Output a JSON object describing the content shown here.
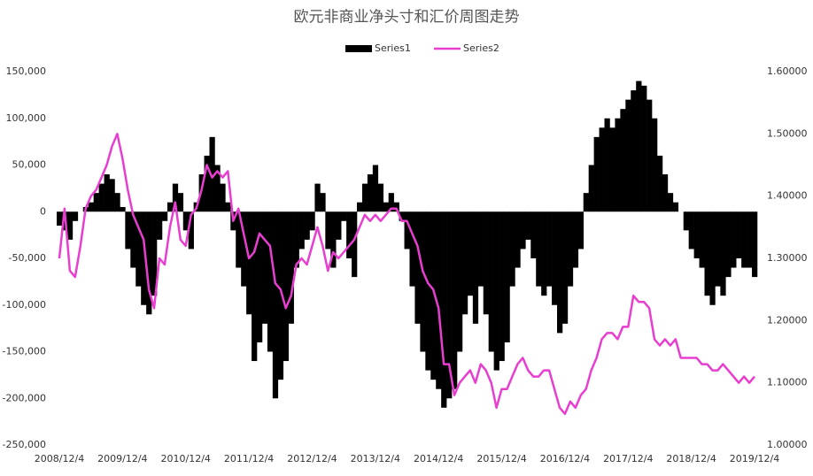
{
  "chart_data": {
    "type": "bar-line",
    "title": "欧元非商业净头寸和汇价周图走势",
    "categories": [
      "2008/12/4",
      null,
      null,
      null,
      null,
      null,
      null,
      null,
      null,
      null,
      null,
      null,
      "2009/12/4",
      null,
      null,
      null,
      null,
      null,
      null,
      null,
      null,
      null,
      null,
      null,
      "2010/12/4",
      null,
      null,
      null,
      null,
      null,
      null,
      null,
      null,
      null,
      null,
      null,
      "2011/12/4",
      null,
      null,
      null,
      null,
      null,
      null,
      null,
      null,
      null,
      null,
      null,
      "2012/12/4",
      null,
      null,
      null,
      null,
      null,
      null,
      null,
      null,
      null,
      null,
      null,
      "2013/12/4",
      null,
      null,
      null,
      null,
      null,
      null,
      null,
      null,
      null,
      null,
      null,
      "2014/12/4",
      null,
      null,
      null,
      null,
      null,
      null,
      null,
      null,
      null,
      null,
      null,
      "2015/12/4",
      null,
      null,
      null,
      null,
      null,
      null,
      null,
      null,
      null,
      null,
      null,
      "2016/12/4",
      null,
      null,
      null,
      null,
      null,
      null,
      null,
      null,
      null,
      null,
      null,
      "2017/12/4",
      null,
      null,
      null,
      null,
      null,
      null,
      null,
      null,
      null,
      null,
      null,
      "2018/12/4",
      null,
      null,
      null,
      null,
      null,
      null,
      null,
      null,
      null,
      null,
      null,
      "2019/12/4"
    ],
    "series": [
      {
        "name": "Series1",
        "color": "#000000",
        "values": [
          -15000,
          -20000,
          -30000,
          -10000,
          0,
          5000,
          10000,
          20000,
          30000,
          40000,
          35000,
          20000,
          5000,
          -40000,
          -60000,
          -80000,
          -100000,
          -110000,
          -90000,
          -30000,
          -10000,
          10000,
          30000,
          20000,
          -20000,
          -40000,
          10000,
          40000,
          60000,
          80000,
          50000,
          30000,
          10000,
          -20000,
          -60000,
          -80000,
          -110000,
          -160000,
          -140000,
          -120000,
          -150000,
          -200000,
          -180000,
          -160000,
          -120000,
          -60000,
          -40000,
          -30000,
          -20000,
          30000,
          20000,
          -40000,
          -60000,
          -30000,
          -10000,
          -50000,
          -70000,
          10000,
          30000,
          40000,
          50000,
          30000,
          10000,
          20000,
          10000,
          -10000,
          -40000,
          -80000,
          -120000,
          -150000,
          -170000,
          -180000,
          -190000,
          -210000,
          -200000,
          -190000,
          -150000,
          -110000,
          -90000,
          -120000,
          -80000,
          -110000,
          -150000,
          -170000,
          -160000,
          -140000,
          -80000,
          -60000,
          -40000,
          -30000,
          -50000,
          -80000,
          -90000,
          -80000,
          -100000,
          -130000,
          -120000,
          -80000,
          -60000,
          -40000,
          20000,
          50000,
          80000,
          90000,
          100000,
          90000,
          100000,
          110000,
          120000,
          130000,
          140000,
          135000,
          120000,
          100000,
          60000,
          40000,
          20000,
          10000,
          0,
          -20000,
          -40000,
          -50000,
          -60000,
          -90000,
          -100000,
          -80000,
          -90000,
          -70000,
          -60000,
          -50000,
          -60000,
          -60000,
          -70000
        ]
      },
      {
        "name": "Series2",
        "color": "#e83ed0",
        "axis": "y2",
        "values": [
          1.3,
          1.38,
          1.28,
          1.27,
          1.32,
          1.38,
          1.4,
          1.41,
          1.43,
          1.45,
          1.48,
          1.5,
          1.46,
          1.41,
          1.37,
          1.35,
          1.33,
          1.25,
          1.22,
          1.3,
          1.29,
          1.35,
          1.39,
          1.33,
          1.32,
          1.37,
          1.38,
          1.41,
          1.45,
          1.43,
          1.44,
          1.43,
          1.44,
          1.36,
          1.38,
          1.34,
          1.3,
          1.31,
          1.34,
          1.33,
          1.32,
          1.26,
          1.25,
          1.22,
          1.24,
          1.29,
          1.3,
          1.29,
          1.32,
          1.35,
          1.32,
          1.28,
          1.31,
          1.3,
          1.31,
          1.32,
          1.33,
          1.35,
          1.37,
          1.36,
          1.37,
          1.36,
          1.37,
          1.38,
          1.38,
          1.36,
          1.36,
          1.34,
          1.32,
          1.28,
          1.26,
          1.25,
          1.22,
          1.13,
          1.13,
          1.08,
          1.1,
          1.11,
          1.12,
          1.1,
          1.13,
          1.12,
          1.1,
          1.06,
          1.09,
          1.09,
          1.11,
          1.13,
          1.14,
          1.12,
          1.11,
          1.11,
          1.12,
          1.12,
          1.09,
          1.06,
          1.05,
          1.07,
          1.06,
          1.08,
          1.09,
          1.12,
          1.14,
          1.17,
          1.18,
          1.18,
          1.17,
          1.19,
          1.19,
          1.24,
          1.23,
          1.23,
          1.22,
          1.17,
          1.16,
          1.17,
          1.16,
          1.17,
          1.14,
          1.14,
          1.14,
          1.14,
          1.13,
          1.13,
          1.12,
          1.12,
          1.13,
          1.12,
          1.11,
          1.1,
          1.11,
          1.1,
          1.11
        ]
      }
    ],
    "ylim": [
      -250000,
      150000
    ],
    "yticks": [
      {
        "value": -250000,
        "label": "-250,000"
      },
      {
        "value": -200000,
        "label": "-200,000"
      },
      {
        "value": -150000,
        "label": "-150,000"
      },
      {
        "value": -100000,
        "label": "-100,000"
      },
      {
        "value": -50000,
        "label": "-50,000"
      },
      0,
      {
        "value": 50000,
        "label": "50,000"
      },
      {
        "value": 100000,
        "label": "100,000"
      },
      {
        "value": 150000,
        "label": "150,000"
      }
    ],
    "y2lim": [
      1.0,
      1.6
    ],
    "y2ticks": [
      {
        "value": 1.0,
        "label": "1.00000"
      },
      {
        "value": 1.1,
        "label": "1.10000"
      },
      {
        "value": 1.2,
        "label": "1.20000"
      },
      {
        "value": 1.3,
        "label": "1.30000"
      },
      {
        "value": 1.4,
        "label": "1.40000"
      },
      {
        "value": 1.5,
        "label": "1.50000"
      },
      {
        "value": 1.6,
        "label": "1.60000"
      }
    ],
    "legend": "top"
  }
}
